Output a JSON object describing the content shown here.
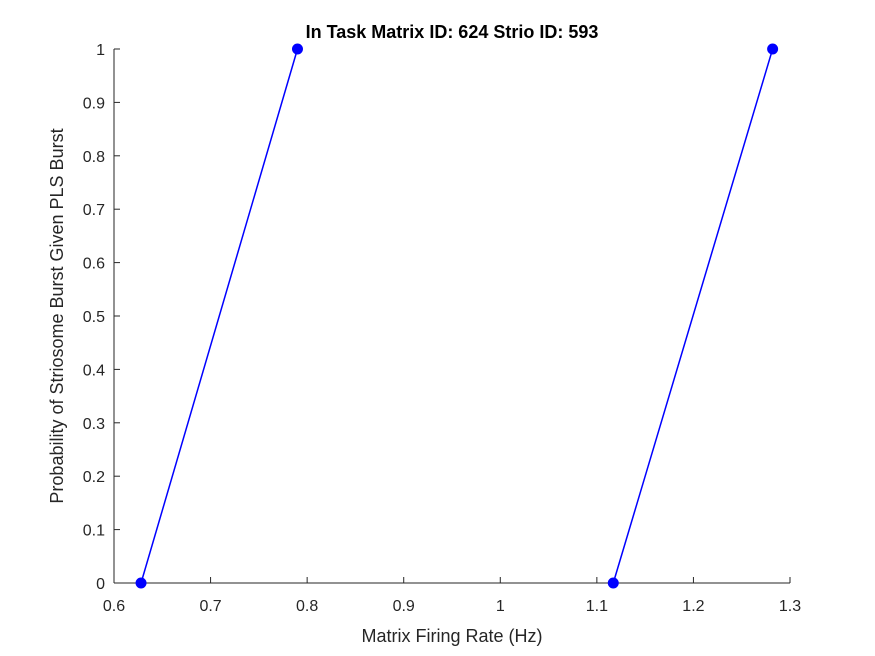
{
  "chart_data": {
    "type": "line",
    "title": "In Task Matrix ID: 624 Strio ID: 593",
    "xlabel": "Matrix Firing Rate (Hz)",
    "ylabel": "Probability of Striosome Burst Given PLS Burst",
    "xlim": [
      0.6,
      1.3
    ],
    "ylim": [
      0,
      1
    ],
    "xticks": [
      "0.6",
      "0.7",
      "0.8",
      "0.9",
      "1",
      "1.1",
      "1.2",
      "1.3"
    ],
    "yticks": [
      "0",
      "0.1",
      "0.2",
      "0.3",
      "0.4",
      "0.5",
      "0.6",
      "0.7",
      "0.8",
      "0.9",
      "1"
    ],
    "grid": false,
    "series": [
      {
        "x": [
          0.628,
          0.79,
          1.117,
          1.282
        ],
        "y": [
          0,
          1,
          0,
          1
        ],
        "segments": [
          [
            0,
            1
          ],
          [
            2,
            3
          ]
        ],
        "color": "#0000ff",
        "marker": "circle"
      }
    ]
  }
}
